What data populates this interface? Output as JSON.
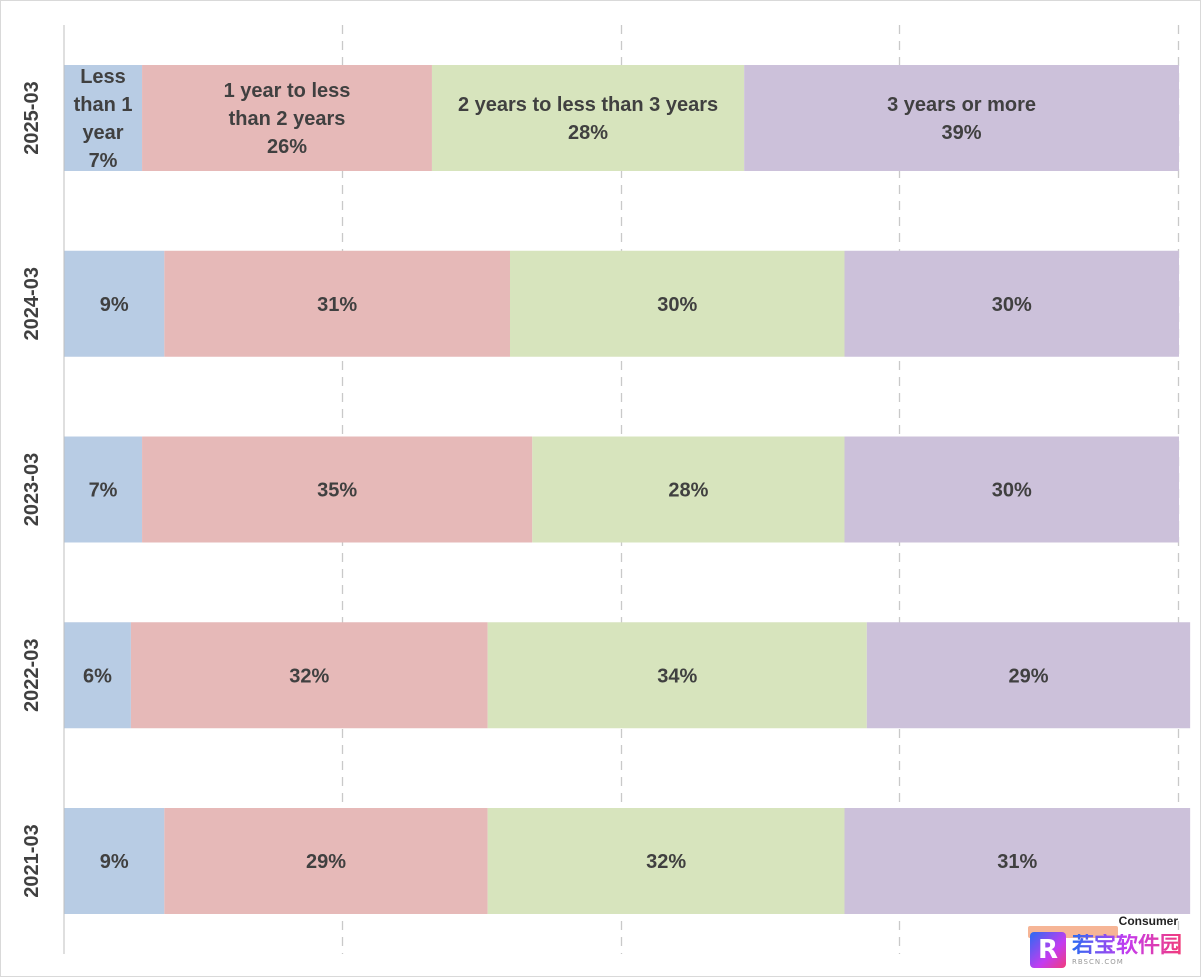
{
  "chart_data": {
    "type": "bar",
    "orientation": "horizontal",
    "stacked": "100%",
    "categories": [
      "2025-03",
      "2024-03",
      "2023-03",
      "2022-03",
      "2021-03"
    ],
    "series": [
      {
        "name": "Less than 1 year",
        "label_lines": [
          "Less",
          "than 1",
          "year"
        ],
        "color": "#b8cce4",
        "values": [
          7,
          9,
          7,
          6,
          9
        ]
      },
      {
        "name": "1 year to less than 2 years",
        "label_lines": [
          "1 year to less",
          "than 2 years"
        ],
        "color": "#e6b9b8",
        "values": [
          26,
          31,
          35,
          32,
          29
        ]
      },
      {
        "name": "2 years to less than 3 years",
        "label_lines": [
          "2 years to less than 3 years"
        ],
        "color": "#d7e4bd",
        "values": [
          28,
          30,
          28,
          34,
          32
        ]
      },
      {
        "name": "3 years or more",
        "label_lines": [
          "3 years or more"
        ],
        "color": "#ccc1da",
        "values": [
          39,
          30,
          30,
          29,
          31
        ]
      }
    ],
    "category_with_series_names": "2025-03",
    "value_suffix": "%",
    "xlim": [
      0,
      100
    ],
    "grid": "vertical-dashed",
    "legend": "none"
  },
  "watermark": {
    "consumer": "Consumer",
    "brand": "若宝软件园",
    "logo_letter": "R",
    "sub": "RBSCN.COM"
  }
}
